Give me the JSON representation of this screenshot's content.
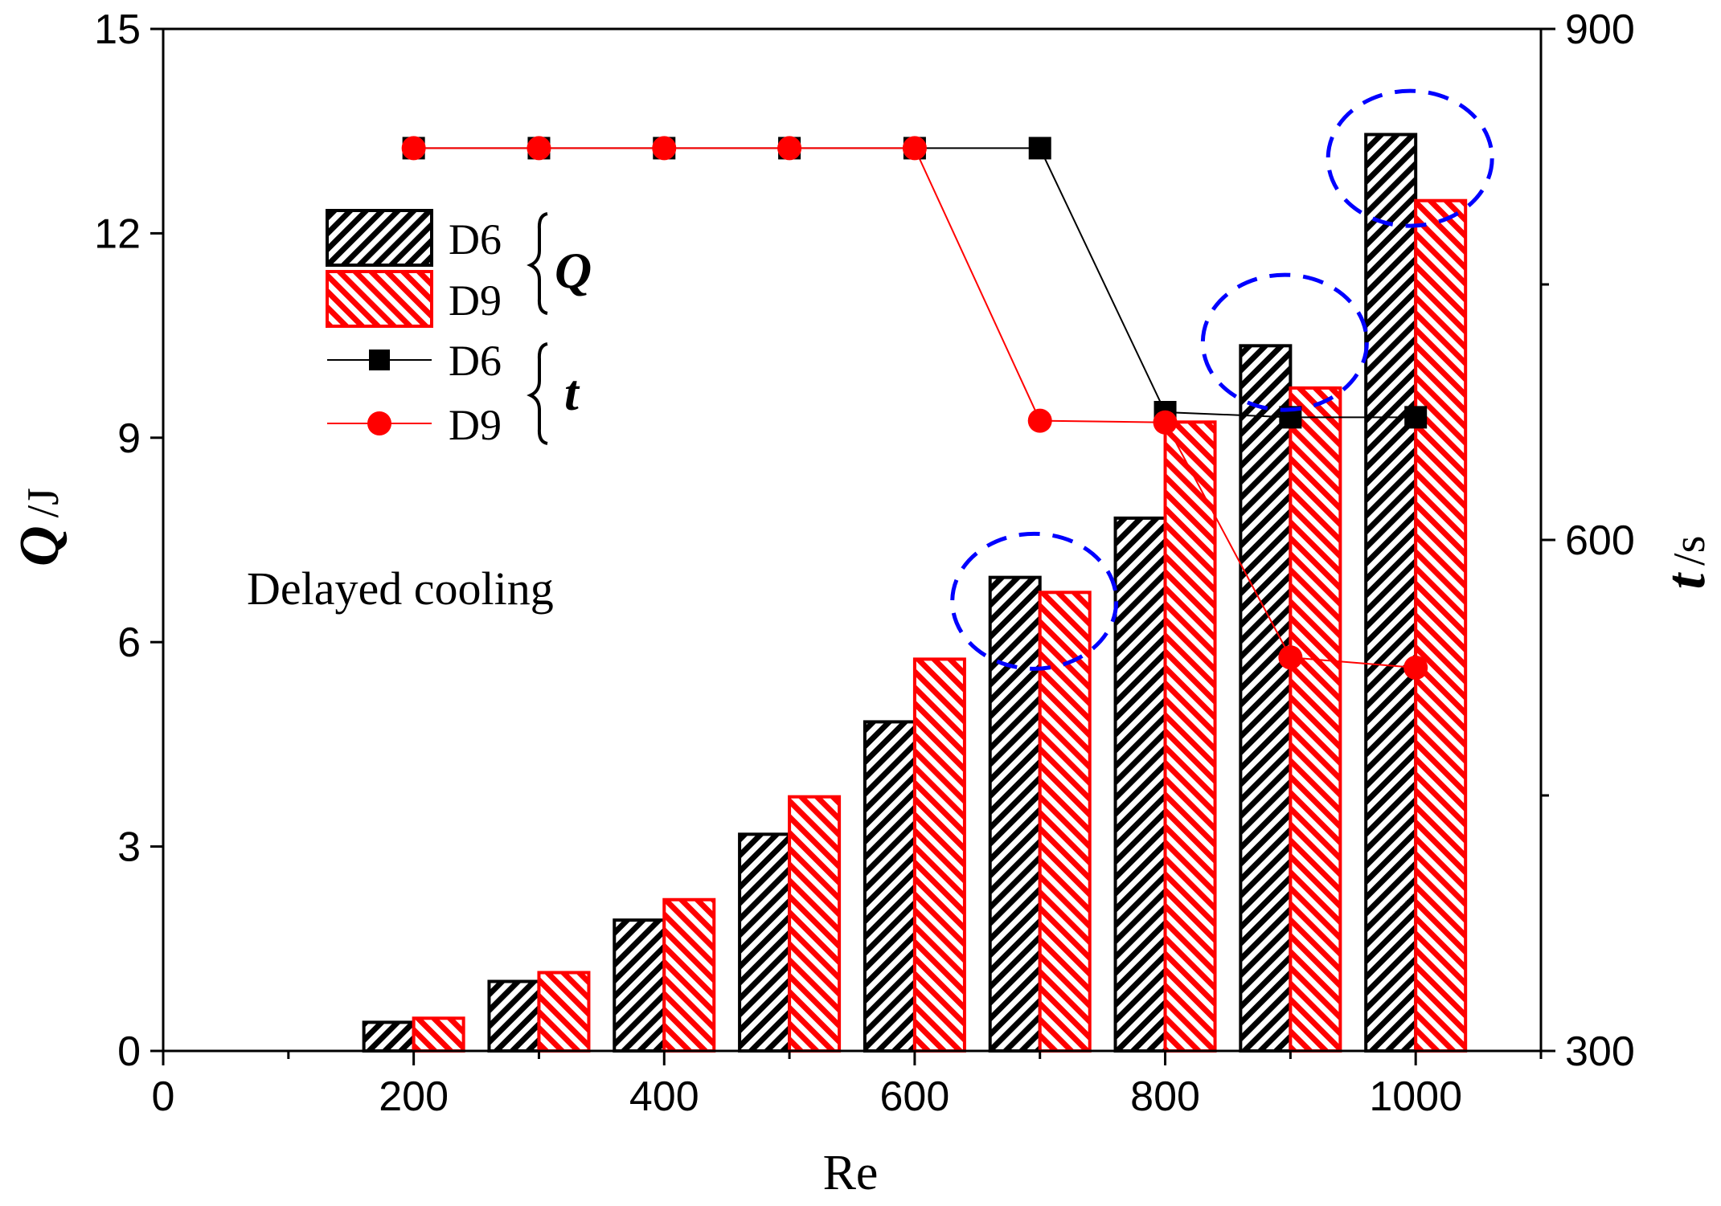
{
  "chart_data": {
    "type": "bar+line",
    "annotation": "Delayed cooling",
    "x_axis": {
      "label": "Re",
      "range": [
        0,
        1100
      ],
      "ticks": [
        0,
        200,
        400,
        600,
        800,
        1000
      ]
    },
    "y_left": {
      "label_symbol": "Q",
      "label_unit": "/J",
      "range": [
        0,
        15
      ],
      "ticks": [
        0,
        3,
        6,
        9,
        12,
        15
      ],
      "tick_labels": [
        "0",
        "3",
        "6",
        "9",
        "12",
        "15"
      ]
    },
    "y_right": {
      "label_symbol": "t",
      "label_unit": "/s",
      "range": [
        300,
        900
      ],
      "ticks": [
        300,
        600,
        900
      ],
      "tick_labels": [
        "300",
        "600",
        "900"
      ],
      "minor_ticks": [
        450,
        750
      ]
    },
    "categories": [
      200,
      300,
      400,
      500,
      600,
      700,
      800,
      900,
      1000
    ],
    "bar_series": [
      {
        "name": "D6",
        "group": "Q",
        "color": "#000000",
        "values": [
          0.42,
          1.02,
          1.92,
          3.18,
          4.83,
          6.95,
          7.82,
          10.35,
          13.45
        ]
      },
      {
        "name": "D9",
        "group": "Q",
        "color": "#ff0000",
        "values": [
          0.48,
          1.15,
          2.22,
          3.73,
          5.75,
          6.73,
          9.23,
          9.73,
          12.48
        ]
      }
    ],
    "line_series": [
      {
        "name": "D6",
        "group": "t",
        "color": "#000000",
        "marker": "square",
        "values": [
          830,
          830,
          830,
          830,
          830,
          830,
          675,
          672,
          672
        ]
      },
      {
        "name": "D9",
        "group": "t",
        "color": "#ff0000",
        "marker": "circle",
        "values": [
          830,
          830,
          830,
          830,
          830,
          670,
          669,
          531,
          525
        ]
      }
    ],
    "legend": {
      "entries": [
        {
          "label": "D6",
          "kind": "bar",
          "color": "#000000"
        },
        {
          "label": "D9",
          "kind": "bar",
          "color": "#ff0000"
        },
        {
          "label": "D6",
          "kind": "line",
          "marker": "square",
          "color": "#000000"
        },
        {
          "label": "D9",
          "kind": "line",
          "marker": "circle",
          "color": "#ff0000"
        }
      ],
      "group_labels": [
        "Q",
        "t"
      ]
    },
    "highlight_circles": [
      {
        "x": 700,
        "q": 6.6,
        "color": "#0000ff"
      },
      {
        "x": 900,
        "q": 10.4,
        "color": "#0000ff"
      },
      {
        "x": 1000,
        "q": 13.1,
        "color": "#0000ff"
      }
    ]
  }
}
